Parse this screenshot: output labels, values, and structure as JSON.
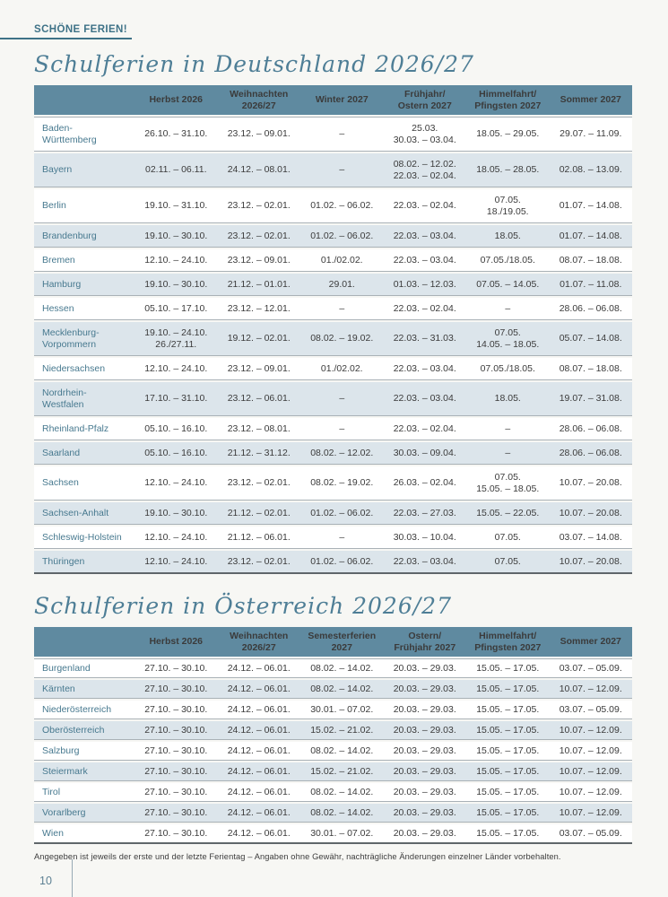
{
  "page": {
    "kicker": "SCHÖNE FERIEN!",
    "footnote": "Angegeben ist jeweils der erste und der letzte Ferientag – Angaben ohne Gewähr, nachträgliche Änderungen einzelner Länder vorbehalten.",
    "page_number": "10"
  },
  "colors": {
    "accent": "#3e7287",
    "table_header_bg": "#5f8aa0",
    "alt_row_bg": "#dce5eb",
    "state_name": "#47798f",
    "date_text": "#3b3b3b"
  },
  "tables": [
    {
      "title": "Schulferien in Deutschland 2026/27",
      "columns": [
        "",
        "Herbst 2026",
        "Weihnachten\n2026/27",
        "Winter 2027",
        "Frühjahr/\nOstern 2027",
        "Himmelfahrt/\nPfingsten 2027",
        "Sommer 2027"
      ],
      "rows": [
        {
          "state": "Baden-\nWürttemberg",
          "cells": [
            "26.10. – 31.10.",
            "23.12. – 09.01.",
            "–",
            "25.03.\n30.03. – 03.04.",
            "18.05. – 29.05.",
            "29.07. – 11.09."
          ]
        },
        {
          "state": "Bayern",
          "cells": [
            "02.11. – 06.11.",
            "24.12. – 08.01.",
            "–",
            "08.02. – 12.02.\n22.03. – 02.04.",
            "18.05. – 28.05.",
            "02.08. – 13.09."
          ]
        },
        {
          "state": "Berlin",
          "cells": [
            "19.10. – 31.10.",
            "23.12. – 02.01.",
            "01.02. – 06.02.",
            "22.03. – 02.04.",
            "07.05.\n18./19.05.",
            "01.07. – 14.08."
          ]
        },
        {
          "state": "Brandenburg",
          "cells": [
            "19.10. – 30.10.",
            "23.12. – 02.01.",
            "01.02. – 06.02.",
            "22.03. – 03.04.",
            "18.05.",
            "01.07. – 14.08."
          ]
        },
        {
          "state": "Bremen",
          "cells": [
            "12.10. – 24.10.",
            "23.12. – 09.01.",
            "01./02.02.",
            "22.03. – 03.04.",
            "07.05./18.05.",
            "08.07. – 18.08."
          ]
        },
        {
          "state": "Hamburg",
          "cells": [
            "19.10. – 30.10.",
            "21.12. – 01.01.",
            "29.01.",
            "01.03. – 12.03.",
            "07.05. – 14.05.",
            "01.07. – 11.08."
          ]
        },
        {
          "state": "Hessen",
          "cells": [
            "05.10. – 17.10.",
            "23.12. – 12.01.",
            "–",
            "22.03. – 02.04.",
            "–",
            "28.06. – 06.08."
          ]
        },
        {
          "state": "Mecklenburg-\nVorpommern",
          "cells": [
            "19.10. – 24.10.\n26./27.11.",
            "19.12. – 02.01.",
            "08.02. – 19.02.",
            "22.03. – 31.03.",
            "07.05.\n14.05. – 18.05.",
            "05.07. – 14.08."
          ]
        },
        {
          "state": "Niedersachsen",
          "cells": [
            "12.10. – 24.10.",
            "23.12. – 09.01.",
            "01./02.02.",
            "22.03. – 03.04.",
            "07.05./18.05.",
            "08.07. – 18.08."
          ]
        },
        {
          "state": "Nordrhein-\nWestfalen",
          "cells": [
            "17.10. – 31.10.",
            "23.12. – 06.01.",
            "–",
            "22.03. – 03.04.",
            "18.05.",
            "19.07. – 31.08."
          ]
        },
        {
          "state": "Rheinland-Pfalz",
          "cells": [
            "05.10. – 16.10.",
            "23.12. – 08.01.",
            "–",
            "22.03. – 02.04.",
            "–",
            "28.06. – 06.08."
          ]
        },
        {
          "state": "Saarland",
          "cells": [
            "05.10. – 16.10.",
            "21.12. – 31.12.",
            "08.02. – 12.02.",
            "30.03. – 09.04.",
            "–",
            "28.06. – 06.08."
          ]
        },
        {
          "state": "Sachsen",
          "cells": [
            "12.10. – 24.10.",
            "23.12. – 02.01.",
            "08.02. – 19.02.",
            "26.03. – 02.04.",
            "07.05.\n15.05. – 18.05.",
            "10.07. – 20.08."
          ]
        },
        {
          "state": "Sachsen-Anhalt",
          "cells": [
            "19.10. – 30.10.",
            "21.12. – 02.01.",
            "01.02. – 06.02.",
            "22.03. – 27.03.",
            "15.05. – 22.05.",
            "10.07. – 20.08."
          ]
        },
        {
          "state": "Schleswig-Holstein",
          "cells": [
            "12.10. – 24.10.",
            "21.12. – 06.01.",
            "–",
            "30.03. – 10.04.",
            "07.05.",
            "03.07. – 14.08."
          ]
        },
        {
          "state": "Thüringen",
          "cells": [
            "12.10. – 24.10.",
            "23.12. – 02.01.",
            "01.02. – 06.02.",
            "22.03. – 03.04.",
            "07.05.",
            "10.07. – 20.08."
          ]
        }
      ]
    },
    {
      "title": "Schulferien in Österreich 2026/27",
      "columns": [
        "",
        "Herbst 2026",
        "Weihnachten\n2026/27",
        "Semesterferien\n2027",
        "Ostern/\nFrühjahr 2027",
        "Himmelfahrt/\nPfingsten 2027",
        "Sommer 2027"
      ],
      "rows": [
        {
          "state": "Burgenland",
          "cells": [
            "27.10. – 30.10.",
            "24.12. – 06.01.",
            "08.02. – 14.02.",
            "20.03. – 29.03.",
            "15.05. – 17.05.",
            "03.07. – 05.09."
          ]
        },
        {
          "state": "Kärnten",
          "cells": [
            "27.10. – 30.10.",
            "24.12. – 06.01.",
            "08.02. – 14.02.",
            "20.03. – 29.03.",
            "15.05. – 17.05.",
            "10.07. – 12.09."
          ]
        },
        {
          "state": "Niederösterreich",
          "cells": [
            "27.10. – 30.10.",
            "24.12. – 06.01.",
            "30.01. – 07.02.",
            "20.03. – 29.03.",
            "15.05. – 17.05.",
            "03.07. – 05.09."
          ]
        },
        {
          "state": "Oberösterreich",
          "cells": [
            "27.10. – 30.10.",
            "24.12. – 06.01.",
            "15.02. – 21.02.",
            "20.03. – 29.03.",
            "15.05. – 17.05.",
            "10.07. – 12.09."
          ]
        },
        {
          "state": "Salzburg",
          "cells": [
            "27.10. – 30.10.",
            "24.12. – 06.01.",
            "08.02. – 14.02.",
            "20.03. – 29.03.",
            "15.05. – 17.05.",
            "10.07. – 12.09."
          ]
        },
        {
          "state": "Steiermark",
          "cells": [
            "27.10. – 30.10.",
            "24.12. – 06.01.",
            "15.02. – 21.02.",
            "20.03. – 29.03.",
            "15.05. – 17.05.",
            "10.07. – 12.09."
          ]
        },
        {
          "state": "Tirol",
          "cells": [
            "27.10. – 30.10.",
            "24.12. – 06.01.",
            "08.02. – 14.02.",
            "20.03. – 29.03.",
            "15.05. – 17.05.",
            "10.07. – 12.09."
          ]
        },
        {
          "state": "Vorarlberg",
          "cells": [
            "27.10. – 30.10.",
            "24.12. – 06.01.",
            "08.02. – 14.02.",
            "20.03. – 29.03.",
            "15.05. – 17.05.",
            "10.07. – 12.09."
          ]
        },
        {
          "state": "Wien",
          "cells": [
            "27.10. – 30.10.",
            "24.12. – 06.01.",
            "30.01. – 07.02.",
            "20.03. – 29.03.",
            "15.05. – 17.05.",
            "03.07. – 05.09."
          ]
        }
      ]
    }
  ]
}
